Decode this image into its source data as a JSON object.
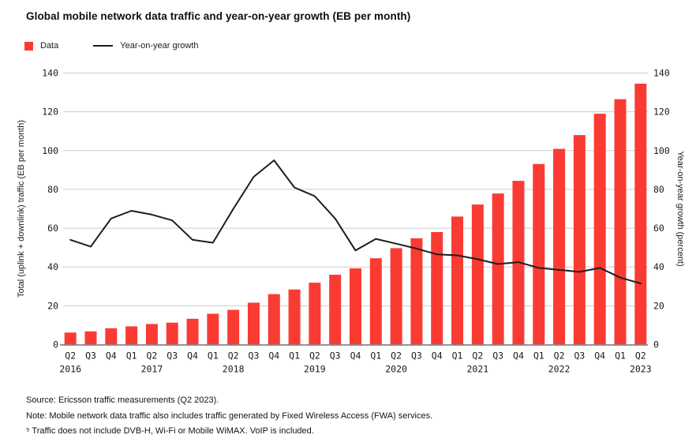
{
  "title": "Global mobile network data traffic and year-on-year growth (EB per month)",
  "legend": {
    "data_label": "Data",
    "growth_label": "Year-on-year growth"
  },
  "colors": {
    "bar": "#fa3b33",
    "line": "#1d1d1d",
    "grid": "#cccccc",
    "baseline": "#8a8a8a",
    "text": "#1a1a1a"
  },
  "chart_data": {
    "type": "bar",
    "subtype": "bar-plus-line-dual-axis",
    "quarters": [
      "Q2",
      "Q3",
      "Q4",
      "Q1",
      "Q2",
      "Q3",
      "Q4",
      "Q1",
      "Q2",
      "Q3",
      "Q4",
      "Q1",
      "Q2",
      "Q3",
      "Q4",
      "Q1",
      "Q2",
      "Q3",
      "Q4",
      "Q1",
      "Q2",
      "Q3",
      "Q4",
      "Q1",
      "Q2",
      "Q3",
      "Q4",
      "Q1",
      "Q2"
    ],
    "year_labels": [
      {
        "index": 0,
        "label": "2016"
      },
      {
        "index": 4,
        "label": "2017"
      },
      {
        "index": 8,
        "label": "2018"
      },
      {
        "index": 12,
        "label": "2019"
      },
      {
        "index": 16,
        "label": "2020"
      },
      {
        "index": 20,
        "label": "2021"
      },
      {
        "index": 24,
        "label": "2022"
      },
      {
        "index": 28,
        "label": "2023"
      }
    ],
    "series": [
      {
        "name": "Data",
        "type": "bar",
        "axis": "left",
        "values": [
          6.2,
          6.8,
          8.4,
          9.4,
          10.6,
          11.3,
          13.3,
          15.9,
          17.9,
          21.6,
          26.0,
          28.4,
          31.9,
          36.0,
          39.3,
          44.5,
          49.7,
          54.8,
          58.0,
          66.0,
          72.2,
          77.9,
          84.4,
          93.1,
          100.9,
          108.0,
          119.0,
          126.5,
          134.5
        ]
      },
      {
        "name": "Year-on-year growth",
        "type": "line",
        "axis": "right",
        "values": [
          54,
          50.5,
          65,
          69,
          67,
          64,
          54,
          52.5,
          70,
          86.5,
          95,
          81,
          76.5,
          65,
          48.5,
          54.5,
          52,
          49.5,
          46.5,
          46,
          44,
          41.5,
          42.5,
          39.5,
          38.5,
          37.5,
          39.5,
          34.5,
          31.5
        ]
      }
    ],
    "left_axis": {
      "title": "Total (uplink + downlink) traffic (EB per month)",
      "ticks": [
        0,
        20,
        40,
        60,
        80,
        100,
        120,
        140
      ],
      "min": 0,
      "max": 140
    },
    "right_axis": {
      "title": "Year-on-year growth (percent)",
      "ticks": [
        0,
        20,
        40,
        60,
        80,
        100,
        120,
        140
      ],
      "min": 0,
      "max": 140
    },
    "grid": "horizontal",
    "legend_position": "top-left"
  },
  "footer": {
    "source": "Source: Ericsson traffic measurements (Q2 2023).",
    "note": "Note: Mobile network data traffic also includes traffic generated by Fixed Wireless Access (FWA) services.",
    "footnote": "⁵ Traffic does not include DVB-H, Wi-Fi or Mobile WiMAX. VoIP is included."
  }
}
